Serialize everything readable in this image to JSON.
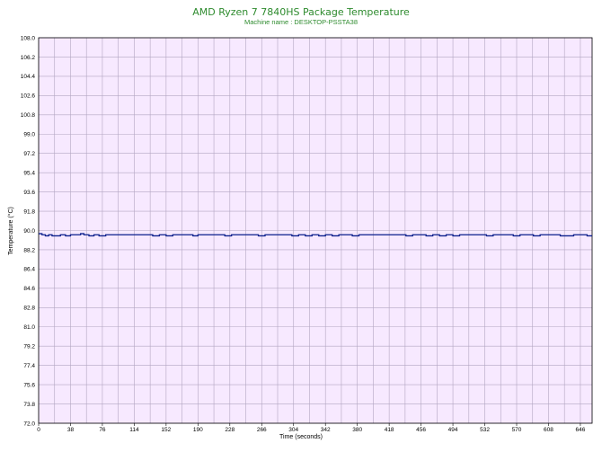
{
  "chart_data": {
    "type": "line",
    "title": "AMD Ryzen 7 7840HS Package Temperature",
    "subtitle": "Machine name : DESKTOP-PSSTA38",
    "xlabel": "Time (seconds)",
    "ylabel": "Temperature (°C)",
    "xlim": [
      0,
      660
    ],
    "ylim": [
      72.0,
      108.0
    ],
    "x_ticks": [
      "0",
      "38",
      "76",
      "114",
      "152",
      "190",
      "228",
      "266",
      "304",
      "342",
      "380",
      "418",
      "456",
      "494",
      "532",
      "570",
      "608",
      "646"
    ],
    "y_ticks": [
      "108.0",
      "106.2",
      "104.4",
      "102.6",
      "100.8",
      "99.0",
      "97.2",
      "95.4",
      "93.6",
      "91.8",
      "90.0",
      "88.2",
      "86.4",
      "84.6",
      "82.8",
      "81.0",
      "79.2",
      "77.4",
      "75.6",
      "73.8",
      "72.0"
    ],
    "grid": true,
    "colors": {
      "plot_background": "#f7e9ff",
      "grid": "#b3a6c2",
      "line": "#0a1f8c",
      "title": "#2e8b2e"
    },
    "series": [
      {
        "x": [
          0,
          4,
          8,
          12,
          16,
          20,
          26,
          32,
          38,
          44,
          50,
          54,
          60,
          66,
          72,
          80,
          88,
          96,
          104,
          112,
          120,
          128,
          136,
          144,
          152,
          160,
          168,
          176,
          184,
          190,
          198,
          206,
          214,
          222,
          230,
          238,
          246,
          254,
          262,
          270,
          278,
          286,
          294,
          302,
          310,
          318,
          326,
          334,
          342,
          350,
          358,
          366,
          374,
          382,
          390,
          398,
          406,
          414,
          422,
          430,
          438,
          446,
          454,
          462,
          470,
          478,
          486,
          494,
          502,
          510,
          518,
          526,
          534,
          542,
          550,
          558,
          566,
          574,
          582,
          590,
          598,
          606,
          614,
          622,
          630,
          638,
          646,
          654,
          660
        ],
        "y": [
          89.7,
          89.6,
          89.5,
          89.6,
          89.5,
          89.5,
          89.6,
          89.5,
          89.6,
          89.6,
          89.7,
          89.6,
          89.5,
          89.6,
          89.5,
          89.6,
          89.6,
          89.6,
          89.6,
          89.6,
          89.6,
          89.6,
          89.5,
          89.6,
          89.5,
          89.6,
          89.6,
          89.6,
          89.5,
          89.6,
          89.6,
          89.6,
          89.6,
          89.5,
          89.6,
          89.6,
          89.6,
          89.6,
          89.5,
          89.6,
          89.6,
          89.6,
          89.6,
          89.5,
          89.6,
          89.5,
          89.6,
          89.5,
          89.6,
          89.5,
          89.6,
          89.6,
          89.5,
          89.6,
          89.6,
          89.6,
          89.6,
          89.6,
          89.6,
          89.6,
          89.5,
          89.6,
          89.6,
          89.5,
          89.6,
          89.5,
          89.6,
          89.5,
          89.6,
          89.6,
          89.6,
          89.6,
          89.5,
          89.6,
          89.6,
          89.6,
          89.5,
          89.6,
          89.6,
          89.5,
          89.6,
          89.6,
          89.6,
          89.5,
          89.5,
          89.6,
          89.6,
          89.5,
          89.5
        ]
      }
    ]
  }
}
